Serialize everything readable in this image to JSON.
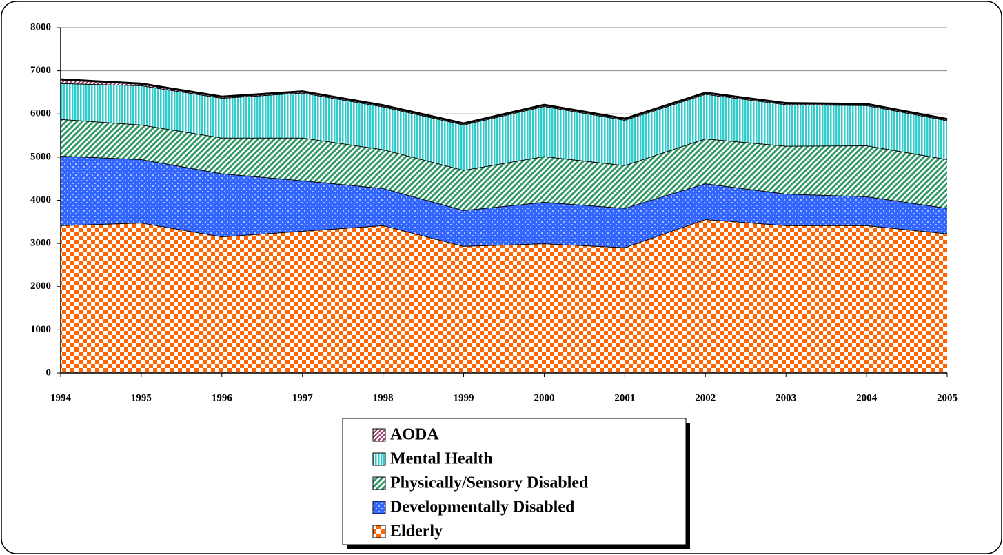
{
  "chart_data": {
    "type": "stacked_area",
    "x": [
      1994,
      1995,
      1996,
      1997,
      1998,
      1999,
      2000,
      2001,
      2002,
      2003,
      2004,
      2005
    ],
    "xlim": [
      1994,
      2005
    ],
    "series": [
      {
        "name": "Elderly",
        "color": "#ff6600",
        "values": [
          3420,
          3480,
          3160,
          3290,
          3420,
          2940,
          3000,
          2910,
          3560,
          3420,
          3420,
          3230
        ]
      },
      {
        "name": "Developmentally Disabled",
        "color": "#3366ff",
        "values": [
          1610,
          1470,
          1460,
          1170,
          860,
          830,
          960,
          910,
          830,
          730,
          670,
          590
        ]
      },
      {
        "name": "Physically/Sensory Disabled",
        "color": "#339966",
        "values": [
          850,
          800,
          830,
          990,
          900,
          930,
          1060,
          990,
          1040,
          1110,
          1180,
          1130
        ]
      },
      {
        "name": "Mental Health",
        "color": "#33cccc",
        "values": [
          830,
          910,
          920,
          1040,
          990,
          1050,
          1160,
          1050,
          1030,
          960,
          930,
          900
        ]
      },
      {
        "name": "AODA",
        "color": "#993366",
        "values": [
          90,
          40,
          30,
          30,
          30,
          30,
          30,
          30,
          30,
          30,
          30,
          30
        ]
      }
    ],
    "ylim": [
      0,
      8000
    ],
    "yticks": [
      0,
      1000,
      2000,
      3000,
      4000,
      5000,
      6000,
      7000,
      8000
    ],
    "grid": true
  }
}
